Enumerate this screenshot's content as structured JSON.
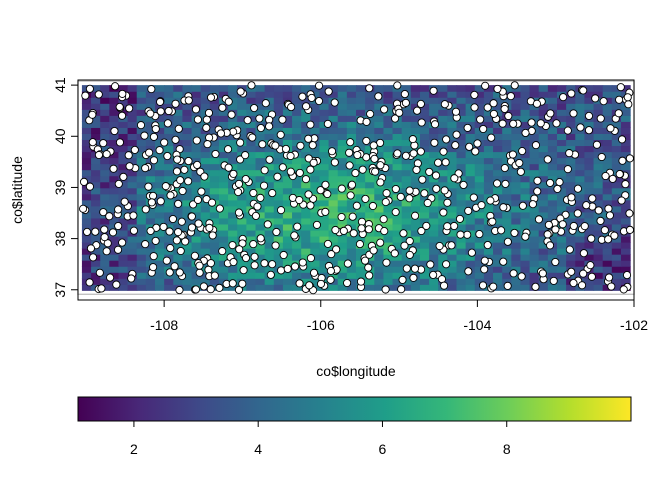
{
  "chart_data": {
    "type": "heatmap",
    "title": "",
    "xlabel": "co$longitude",
    "ylabel": "co$latitude",
    "xlim": [
      -109.1,
      -102.0
    ],
    "ylim": [
      36.8,
      41.1
    ],
    "x_ticks": [
      -108,
      -106,
      -104,
      -102
    ],
    "y_ticks": [
      37,
      38,
      39,
      40,
      41
    ],
    "raster_extent": {
      "lon": [
        -109.05,
        -102.05
      ],
      "lat": [
        36.99,
        41.0
      ]
    },
    "raster_grid": {
      "nx": 60,
      "ny": 34
    },
    "raster_value_range": [
      1.1,
      10.0
    ],
    "high_value_center": {
      "lon": -105.9,
      "lat": 38.5
    },
    "point_count": 700,
    "point_style": {
      "fill": "#ffffff",
      "stroke": "#000000"
    },
    "colorbar": {
      "range": [
        1.1,
        10.0
      ],
      "ticks": [
        2,
        4,
        6,
        8
      ],
      "palette": [
        "#440154",
        "#482878",
        "#3E4A89",
        "#31688E",
        "#26828E",
        "#1F9E89",
        "#35B779",
        "#6DCD59",
        "#B4DE2C",
        "#FDE725"
      ],
      "placement": "bottom"
    },
    "grid": false,
    "legend": "none"
  }
}
